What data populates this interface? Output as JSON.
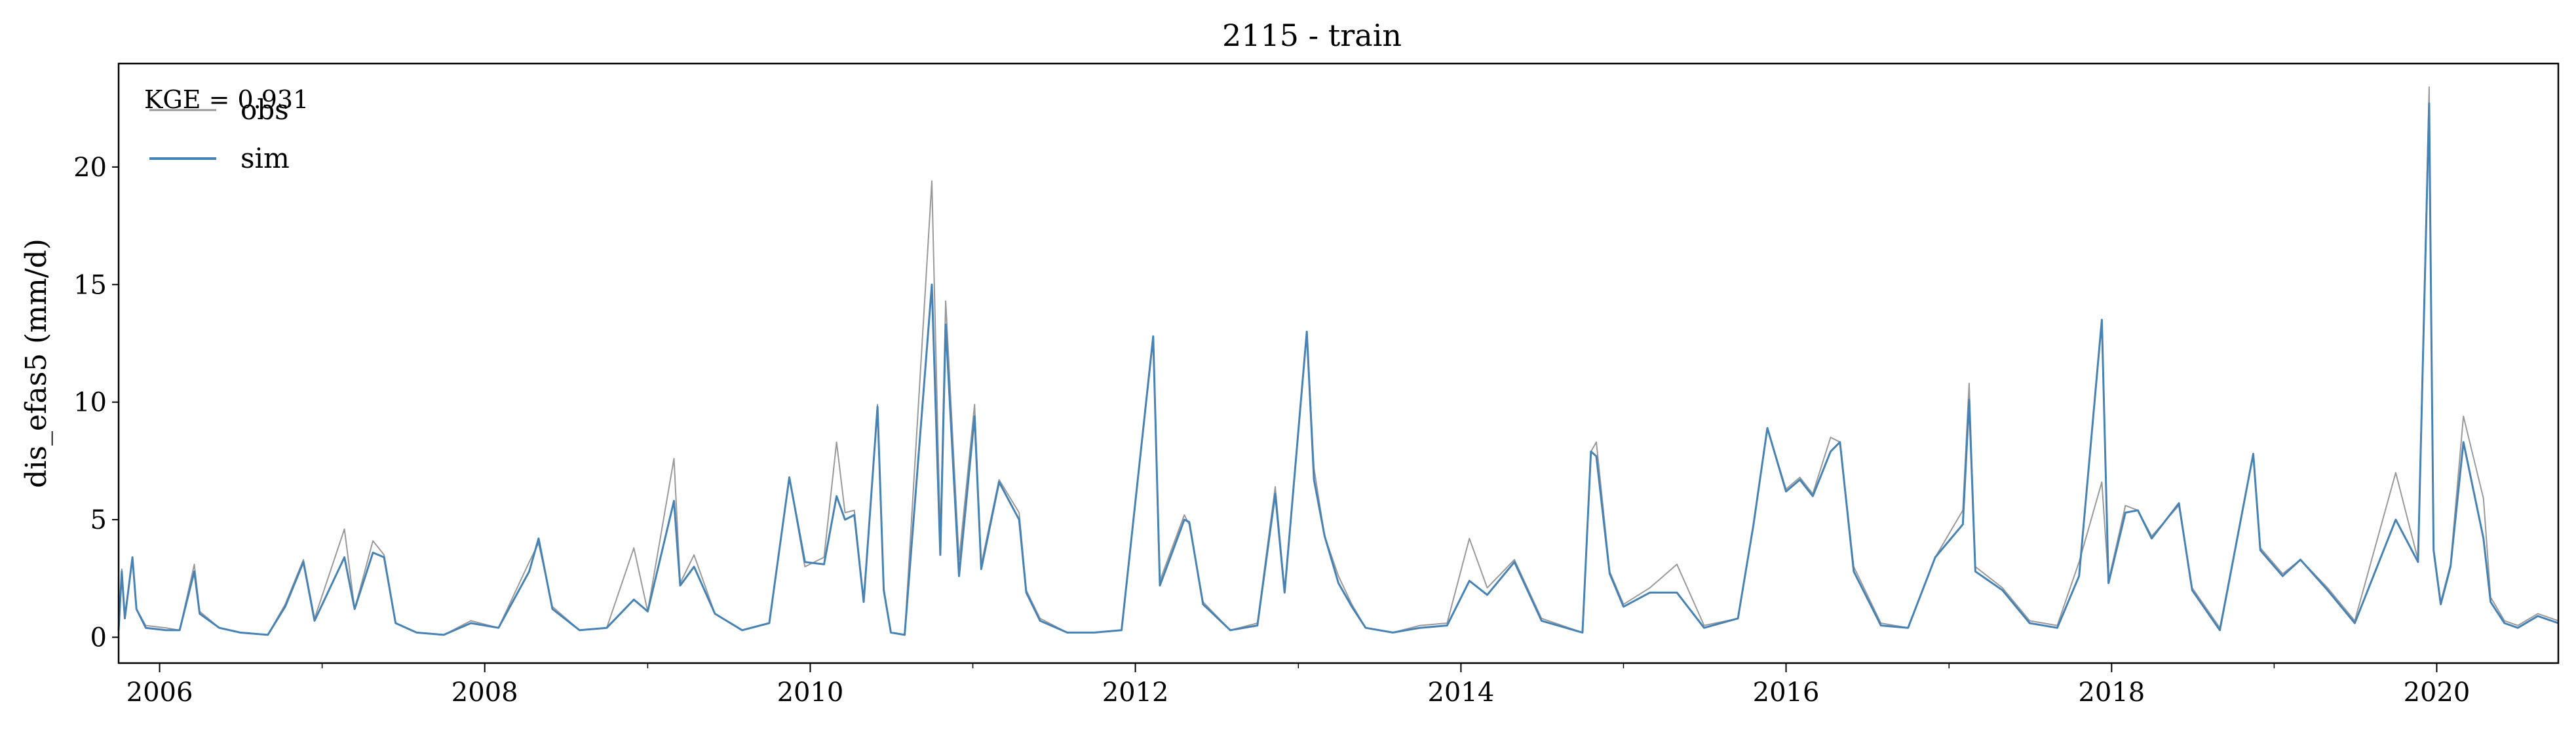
{
  "chart_data": {
    "type": "line",
    "title": "2115 - train",
    "xlabel": "",
    "ylabel": "dis_efas5 (mm/d)",
    "annotation": "KGE = 0.931",
    "xlim": [
      "2005-10-01",
      "2020-09-30"
    ],
    "ylim": [
      -1.1,
      24.4
    ],
    "yticks": [
      0,
      5,
      10,
      15,
      20
    ],
    "xticks": [
      "2006-01-01",
      "2008-01-01",
      "2010-01-01",
      "2012-01-01",
      "2014-01-01",
      "2016-01-01",
      "2018-01-01",
      "2020-01-01"
    ],
    "xtick_labels": [
      "2006",
      "2008",
      "2010",
      "2012",
      "2014",
      "2016",
      "2018",
      "2020"
    ],
    "minor_xticks": [
      "2007-01-01",
      "2009-01-01",
      "2011-01-01",
      "2013-01-01",
      "2015-01-01",
      "2017-01-01",
      "2019-01-01"
    ],
    "grid": false,
    "legend": {
      "position": "top-left"
    },
    "series": [
      {
        "name": "obs",
        "color": "#999999",
        "x": [
          "2005-10-01",
          "2005-10-08",
          "2005-10-15",
          "2005-11-01",
          "2005-11-10",
          "2005-12-01",
          "2006-01-15",
          "2006-02-15",
          "2006-03-20",
          "2006-04-01",
          "2006-05-15",
          "2006-07-01",
          "2006-09-01",
          "2006-10-10",
          "2006-11-20",
          "2006-12-15",
          "2007-02-20",
          "2007-03-15",
          "2007-04-25",
          "2007-05-20",
          "2007-06-15",
          "2007-08-01",
          "2007-10-01",
          "2007-12-01",
          "2008-02-01",
          "2008-04-10",
          "2008-05-01",
          "2008-06-01",
          "2008-08-01",
          "2008-10-01",
          "2008-12-01",
          "2009-01-01",
          "2009-03-01",
          "2009-03-15",
          "2009-04-15",
          "2009-06-01",
          "2009-08-01",
          "2009-10-01",
          "2009-11-15",
          "2009-12-20",
          "2010-02-01",
          "2010-03-01",
          "2010-03-20",
          "2010-04-10",
          "2010-05-01",
          "2010-06-01",
          "2010-06-15",
          "2010-07-01",
          "2010-08-01",
          "2010-10-01",
          "2010-10-20",
          "2010-11-01",
          "2010-12-01",
          "2011-01-05",
          "2011-01-20",
          "2011-03-01",
          "2011-04-15",
          "2011-05-01",
          "2011-06-01",
          "2011-08-01",
          "2011-10-01",
          "2011-12-01",
          "2012-02-10",
          "2012-02-25",
          "2012-04-20",
          "2012-05-01",
          "2012-06-01",
          "2012-08-01",
          "2012-10-01",
          "2012-11-10",
          "2012-12-01",
          "2013-01-20",
          "2013-02-05",
          "2013-03-01",
          "2013-04-01",
          "2013-05-01",
          "2013-06-01",
          "2013-08-01",
          "2013-10-01",
          "2013-12-01",
          "2014-01-20",
          "2014-03-01",
          "2014-05-01",
          "2014-07-01",
          "2014-10-01",
          "2014-10-20",
          "2014-11-01",
          "2014-12-01",
          "2015-01-01",
          "2015-03-01",
          "2015-05-01",
          "2015-07-01",
          "2015-09-15",
          "2015-10-20",
          "2015-11-20",
          "2016-01-01",
          "2016-02-01",
          "2016-03-01",
          "2016-04-10",
          "2016-05-01",
          "2016-06-01",
          "2016-08-01",
          "2016-10-01",
          "2016-12-01",
          "2017-02-01",
          "2017-02-15",
          "2017-03-01",
          "2017-05-01",
          "2017-07-01",
          "2017-09-01",
          "2017-10-20",
          "2017-12-10",
          "2017-12-25",
          "2018-02-01",
          "2018-03-01",
          "2018-04-01",
          "2018-06-01",
          "2018-07-01",
          "2018-09-01",
          "2018-11-15",
          "2018-12-01",
          "2019-01-20",
          "2019-03-01",
          "2019-05-01",
          "2019-07-01",
          "2019-10-01",
          "2019-11-20",
          "2019-12-15",
          "2019-12-20",
          "2019-12-25",
          "2020-01-10",
          "2020-02-01",
          "2020-03-01",
          "2020-04-15",
          "2020-05-01",
          "2020-06-01",
          "2020-07-01",
          "2020-08-15",
          "2020-09-30"
        ],
        "y": [
          0.4,
          2.9,
          0.9,
          3.4,
          1.2,
          0.5,
          0.4,
          0.3,
          3.1,
          1.1,
          0.4,
          0.2,
          0.1,
          1.4,
          3.3,
          0.8,
          4.6,
          1.2,
          4.1,
          3.5,
          0.6,
          0.2,
          0.1,
          0.7,
          0.4,
          3.2,
          4.0,
          1.3,
          0.3,
          0.4,
          3.8,
          1.1,
          7.6,
          2.3,
          3.5,
          1.0,
          0.3,
          0.6,
          6.8,
          3.0,
          3.4,
          8.3,
          5.3,
          5.4,
          1.5,
          9.9,
          2.1,
          0.2,
          0.1,
          19.4,
          4.2,
          14.3,
          3.3,
          9.9,
          3.1,
          6.7,
          5.3,
          2.0,
          0.8,
          0.2,
          0.2,
          0.3,
          12.7,
          2.4,
          5.2,
          4.8,
          1.5,
          0.3,
          0.6,
          6.4,
          2.0,
          13.0,
          7.2,
          4.3,
          2.6,
          1.4,
          0.4,
          0.2,
          0.5,
          0.6,
          4.2,
          2.1,
          3.3,
          0.8,
          0.2,
          7.9,
          8.3,
          2.8,
          1.4,
          2.1,
          3.1,
          0.5,
          0.8,
          4.8,
          8.9,
          6.3,
          6.8,
          6.1,
          8.5,
          8.3,
          3.0,
          0.6,
          0.4,
          3.4,
          5.4,
          10.8,
          3.0,
          2.1,
          0.7,
          0.5,
          3.2,
          6.6,
          2.4,
          5.6,
          5.4,
          4.3,
          5.6,
          2.1,
          0.4,
          7.8,
          3.8,
          2.7,
          3.3,
          2.1,
          0.7,
          7.0,
          3.3,
          23.4,
          13.1,
          3.8,
          1.5,
          3.1,
          9.4,
          5.9,
          1.7,
          0.7,
          0.5,
          1.0,
          0.7
        ],
        "line_width": 2
      },
      {
        "name": "sim",
        "color": "#4682b4",
        "x": [
          "2005-10-01",
          "2005-10-08",
          "2005-10-15",
          "2005-11-01",
          "2005-11-10",
          "2005-12-01",
          "2006-01-15",
          "2006-02-15",
          "2006-03-20",
          "2006-04-01",
          "2006-05-15",
          "2006-07-01",
          "2006-09-01",
          "2006-10-10",
          "2006-11-20",
          "2006-12-15",
          "2007-02-20",
          "2007-03-15",
          "2007-04-25",
          "2007-05-20",
          "2007-06-15",
          "2007-08-01",
          "2007-10-01",
          "2007-12-01",
          "2008-02-01",
          "2008-04-10",
          "2008-05-01",
          "2008-06-01",
          "2008-08-01",
          "2008-10-01",
          "2008-12-01",
          "2009-01-01",
          "2009-03-01",
          "2009-03-15",
          "2009-04-15",
          "2009-06-01",
          "2009-08-01",
          "2009-10-01",
          "2009-11-15",
          "2009-12-20",
          "2010-02-01",
          "2010-03-01",
          "2010-03-20",
          "2010-04-10",
          "2010-05-01",
          "2010-06-01",
          "2010-06-15",
          "2010-07-01",
          "2010-08-01",
          "2010-10-01",
          "2010-10-20",
          "2010-11-01",
          "2010-12-01",
          "2011-01-05",
          "2011-01-20",
          "2011-03-01",
          "2011-04-15",
          "2011-05-01",
          "2011-06-01",
          "2011-08-01",
          "2011-10-01",
          "2011-12-01",
          "2012-02-10",
          "2012-02-25",
          "2012-04-20",
          "2012-05-01",
          "2012-06-01",
          "2012-08-01",
          "2012-10-01",
          "2012-11-10",
          "2012-12-01",
          "2013-01-20",
          "2013-02-05",
          "2013-03-01",
          "2013-04-01",
          "2013-05-01",
          "2013-06-01",
          "2013-08-01",
          "2013-10-01",
          "2013-12-01",
          "2014-01-20",
          "2014-03-01",
          "2014-05-01",
          "2014-07-01",
          "2014-10-01",
          "2014-10-20",
          "2014-11-01",
          "2014-12-01",
          "2015-01-01",
          "2015-03-01",
          "2015-05-01",
          "2015-07-01",
          "2015-09-15",
          "2015-10-20",
          "2015-11-20",
          "2016-01-01",
          "2016-02-01",
          "2016-03-01",
          "2016-04-10",
          "2016-05-01",
          "2016-06-01",
          "2016-08-01",
          "2016-10-01",
          "2016-12-01",
          "2017-02-01",
          "2017-02-15",
          "2017-03-01",
          "2017-05-01",
          "2017-07-01",
          "2017-09-01",
          "2017-10-20",
          "2017-12-10",
          "2017-12-25",
          "2018-02-01",
          "2018-03-01",
          "2018-04-01",
          "2018-06-01",
          "2018-07-01",
          "2018-09-01",
          "2018-11-15",
          "2018-12-01",
          "2019-01-20",
          "2019-03-01",
          "2019-05-01",
          "2019-07-01",
          "2019-10-01",
          "2019-11-20",
          "2019-12-15",
          "2019-12-20",
          "2019-12-25",
          "2020-01-10",
          "2020-02-01",
          "2020-03-01",
          "2020-04-15",
          "2020-05-01",
          "2020-06-01",
          "2020-07-01",
          "2020-08-15",
          "2020-09-30"
        ],
        "y": [
          0.3,
          2.8,
          0.8,
          3.4,
          1.2,
          0.4,
          0.3,
          0.3,
          2.8,
          1.0,
          0.4,
          0.2,
          0.1,
          1.3,
          3.2,
          0.7,
          3.4,
          1.2,
          3.6,
          3.4,
          0.6,
          0.2,
          0.1,
          0.6,
          0.4,
          2.8,
          4.2,
          1.2,
          0.3,
          0.4,
          1.6,
          1.1,
          5.8,
          2.2,
          3.0,
          1.0,
          0.3,
          0.6,
          6.8,
          3.2,
          3.1,
          6.0,
          5.0,
          5.2,
          1.5,
          9.8,
          2.0,
          0.2,
          0.1,
          15.0,
          3.5,
          13.3,
          2.6,
          9.4,
          2.9,
          6.6,
          5.0,
          1.9,
          0.7,
          0.2,
          0.2,
          0.3,
          12.8,
          2.2,
          5.0,
          4.9,
          1.4,
          0.3,
          0.5,
          6.1,
          1.9,
          13.0,
          6.7,
          4.3,
          2.3,
          1.3,
          0.4,
          0.2,
          0.4,
          0.5,
          2.4,
          1.8,
          3.2,
          0.7,
          0.2,
          7.9,
          7.7,
          2.7,
          1.3,
          1.9,
          1.9,
          0.4,
          0.8,
          4.8,
          8.9,
          6.2,
          6.7,
          6.0,
          7.9,
          8.3,
          2.8,
          0.5,
          0.4,
          3.4,
          4.8,
          10.1,
          2.8,
          2.0,
          0.6,
          0.4,
          2.6,
          13.5,
          2.3,
          5.3,
          5.4,
          4.2,
          5.7,
          2.0,
          0.3,
          7.8,
          3.7,
          2.6,
          3.3,
          2.0,
          0.6,
          5.0,
          3.2,
          22.7,
          12.9,
          3.7,
          1.4,
          3.0,
          8.3,
          4.2,
          1.5,
          0.6,
          0.4,
          0.9,
          0.6
        ],
        "line_width": 3
      }
    ]
  }
}
